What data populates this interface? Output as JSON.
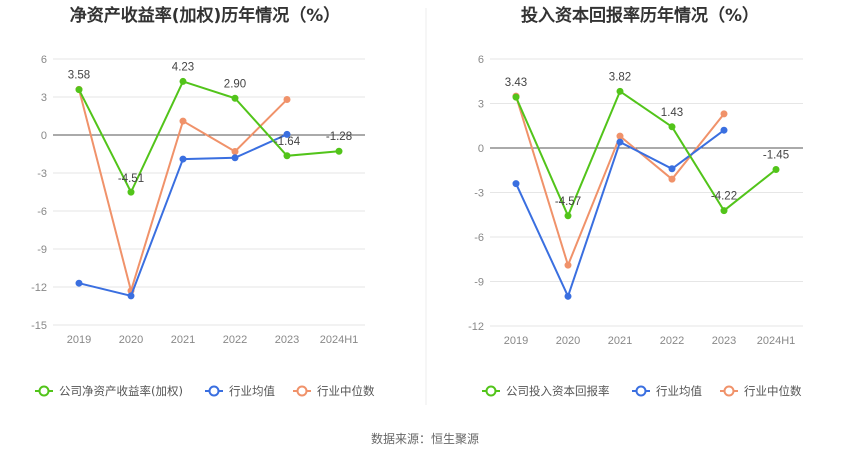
{
  "source": "数据来源：恒生聚源",
  "chart_data": [
    {
      "type": "line",
      "title": "净资产收益率(加权)历年情况（%）",
      "categories": [
        "2019",
        "2020",
        "2021",
        "2022",
        "2023",
        "2024H1"
      ],
      "ylim": [
        -15,
        6
      ],
      "yticks": [
        6,
        3,
        0,
        -3,
        -6,
        -9,
        -12,
        -15
      ],
      "grid": true,
      "legend_position": "bottom",
      "series": [
        {
          "name": "公司净资产收益率(加权)",
          "color": "#52c41a",
          "values": [
            3.58,
            -4.51,
            4.23,
            2.9,
            -1.64,
            -1.28
          ],
          "labeled": true
        },
        {
          "name": "行业均值",
          "color": "#3a6fe0",
          "values": [
            -11.7,
            -12.7,
            -1.9,
            -1.8,
            0.05,
            null
          ],
          "labeled": false
        },
        {
          "name": "行业中位数",
          "color": "#f0926a",
          "values": [
            3.6,
            -12.3,
            1.1,
            -1.3,
            2.8,
            null
          ],
          "labeled": false
        }
      ],
      "data_labels": [
        "3.58",
        "-4.51",
        "4.23",
        "2.90",
        "-1.64",
        "-1.28"
      ]
    },
    {
      "type": "line",
      "title": "投入资本回报率历年情况（%）",
      "categories": [
        "2019",
        "2020",
        "2021",
        "2022",
        "2023",
        "2024H1"
      ],
      "ylim": [
        -12,
        6
      ],
      "yticks": [
        6,
        3,
        0,
        -3,
        -6,
        -9,
        -12
      ],
      "grid": true,
      "legend_position": "bottom",
      "series": [
        {
          "name": "公司投入资本回报率",
          "color": "#52c41a",
          "values": [
            3.43,
            -4.57,
            3.82,
            1.43,
            -4.22,
            -1.45
          ],
          "labeled": true
        },
        {
          "name": "行业均值",
          "color": "#3a6fe0",
          "values": [
            -2.4,
            -10.0,
            0.4,
            -1.4,
            1.2,
            null
          ],
          "labeled": false
        },
        {
          "name": "行业中位数",
          "color": "#f0926a",
          "values": [
            3.5,
            -7.9,
            0.8,
            -2.1,
            2.3,
            null
          ],
          "labeled": false
        }
      ],
      "data_labels": [
        "3.43",
        "-4.57",
        "3.82",
        "1.43",
        "-4.22",
        "-1.45"
      ]
    }
  ]
}
